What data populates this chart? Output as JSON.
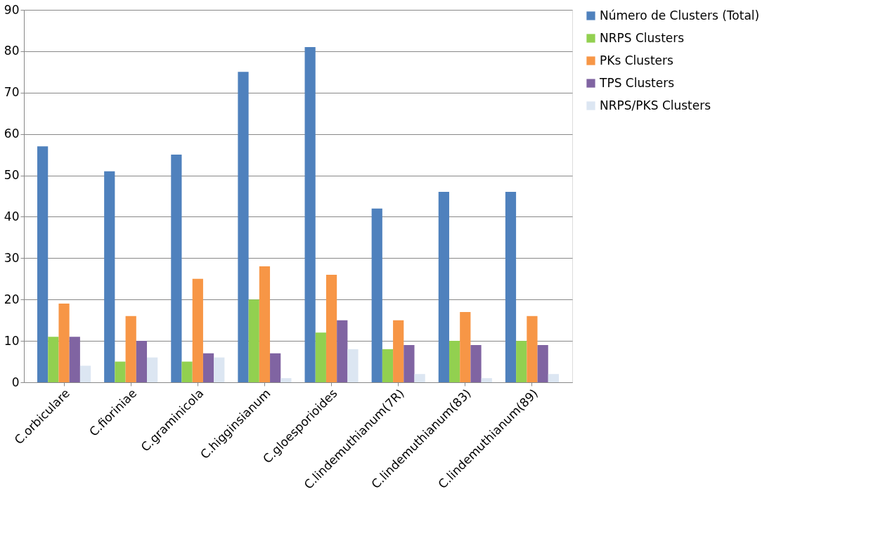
{
  "chart_data": {
    "type": "bar",
    "categories": [
      "C.orbiculare",
      "C.fioriniae",
      "C.graminicola",
      "C.higginsianum",
      "C.gloesporioides",
      "C.lindemuthianum(7R)",
      "C.lindemuthianum(83)",
      "C.lindemuthianum(89)"
    ],
    "series": [
      {
        "name": "Número de Clusters (Total)",
        "color": "#4f81bd",
        "values": [
          57,
          51,
          55,
          75,
          81,
          42,
          46,
          46
        ]
      },
      {
        "name": "NRPS Clusters",
        "color": "#92d050",
        "values": [
          11,
          5,
          5,
          20,
          12,
          8,
          10,
          10
        ]
      },
      {
        "name": "PKs Clusters",
        "color": "#f79646",
        "values": [
          19,
          16,
          25,
          28,
          26,
          15,
          17,
          16
        ]
      },
      {
        "name": "TPS Clusters",
        "color": "#8064a2",
        "values": [
          11,
          10,
          7,
          7,
          15,
          9,
          9,
          9
        ]
      },
      {
        "name": "NRPS/PKS Clusters",
        "color": "#dce6f2",
        "values": [
          4,
          6,
          6,
          1,
          8,
          2,
          1,
          2
        ]
      }
    ],
    "ylim": [
      0,
      90
    ],
    "yticks": [
      0,
      10,
      20,
      30,
      40,
      50,
      60,
      70,
      80,
      90
    ],
    "grid": "y",
    "legend": "right"
  }
}
